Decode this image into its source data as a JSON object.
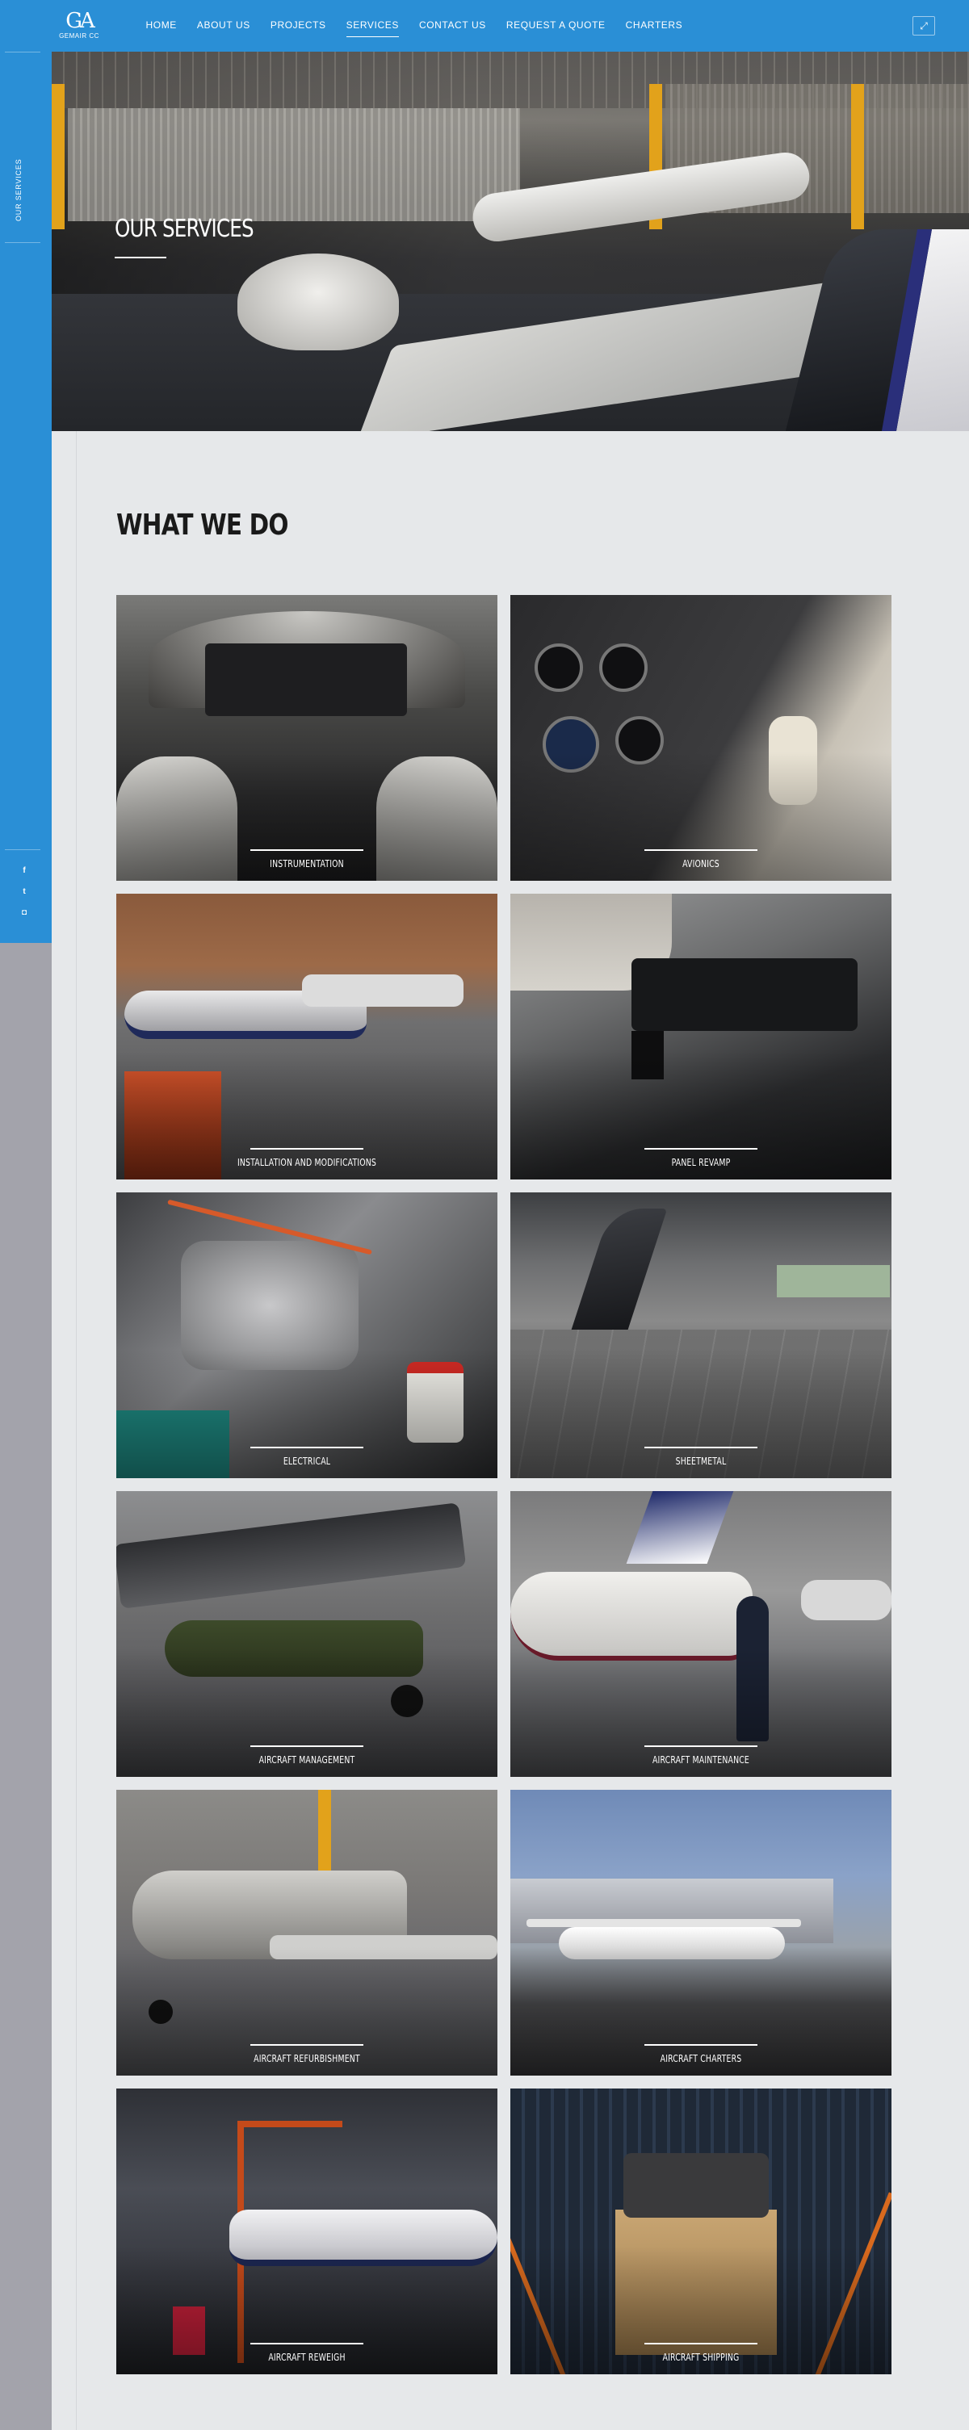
{
  "header": {
    "logo_mark": "GA",
    "logo_text": "GEMAIR CC",
    "nav": [
      {
        "label": "HOME",
        "active": false
      },
      {
        "label": "ABOUT US",
        "active": false
      },
      {
        "label": "PROJECTS",
        "active": false
      },
      {
        "label": "SERVICES",
        "active": true
      },
      {
        "label": "CONTACT US",
        "active": false
      },
      {
        "label": "REQUEST A QUOTE",
        "active": false
      },
      {
        "label": "CHARTERS",
        "active": false
      }
    ],
    "expand_icon": "expand-icon"
  },
  "sidebar": {
    "label": "OUR SERVICES",
    "social": [
      {
        "name": "facebook-icon",
        "glyph": "f"
      },
      {
        "name": "twitter-icon",
        "glyph": "t"
      },
      {
        "name": "instagram-icon",
        "glyph": "◘"
      }
    ]
  },
  "hero": {
    "title": "OUR SERVICES"
  },
  "main": {
    "title": "WHAT WE DO",
    "services": [
      {
        "label": "INSTRUMENTATION"
      },
      {
        "label": "AVIONICS"
      },
      {
        "label": "INSTALLATION AND MODIFICATIONS"
      },
      {
        "label": "PANEL REVAMP"
      },
      {
        "label": "ELECTRICAL"
      },
      {
        "label": "SHEETMETAL"
      },
      {
        "label": "AIRCRAFT MANAGEMENT"
      },
      {
        "label": "AIRCRAFT MAINTENANCE"
      },
      {
        "label": "AIRCRAFT REFURBISHMENT"
      },
      {
        "label": "AIRCRAFT CHARTERS"
      },
      {
        "label": "AIRCRAFT REWEIGH"
      },
      {
        "label": "AIRCRAFT SHIPPING"
      }
    ]
  },
  "colors": {
    "accent": "#2a8fd6",
    "page_bg": "#e6e8ea",
    "sidebar_gray": "#a3a3ab"
  }
}
